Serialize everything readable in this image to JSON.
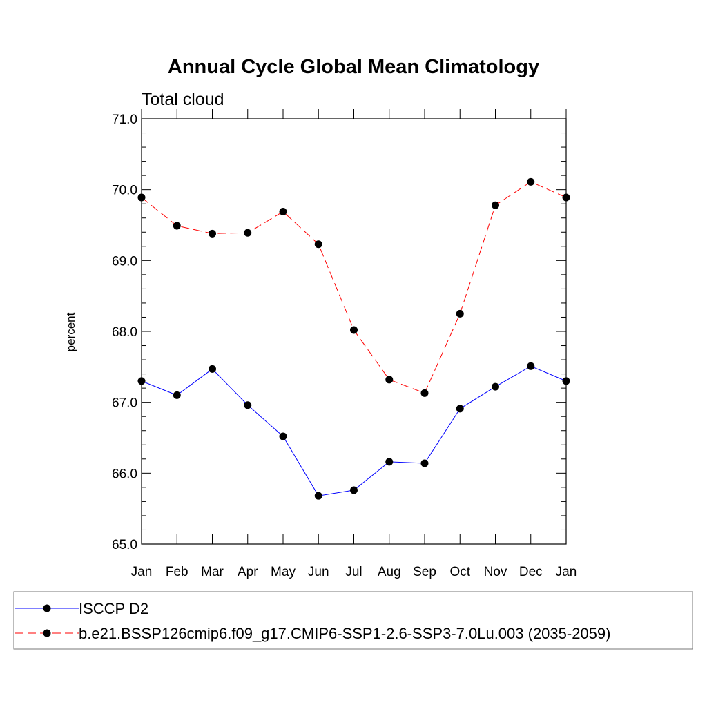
{
  "chart_data": {
    "type": "line",
    "title": "Annual Cycle Global Mean Climatology",
    "subtitle": "Total cloud",
    "xlabel": "",
    "ylabel": "percent",
    "categories": [
      "Jan",
      "Feb",
      "Mar",
      "Apr",
      "May",
      "Jun",
      "Jul",
      "Aug",
      "Sep",
      "Oct",
      "Nov",
      "Dec",
      "Jan"
    ],
    "ylim": [
      65.0,
      71.0
    ],
    "yticks": [
      "65.0",
      "66.0",
      "67.0",
      "68.0",
      "69.0",
      "70.0",
      "71.0"
    ],
    "grid": false,
    "legend_position": "bottom",
    "series": [
      {
        "name": "ISCCP D2",
        "color": "#0000ff",
        "line_style": "solid",
        "values": [
          67.3,
          67.1,
          67.47,
          66.96,
          66.52,
          65.68,
          65.76,
          66.16,
          66.14,
          66.91,
          67.22,
          67.51,
          67.3
        ]
      },
      {
        "name": "b.e21.BSSP126cmip6.f09_g17.CMIP6-SSP1-2.6-SSP3-7.0Lu.003 (2035-2059)",
        "color": "#ff0000",
        "line_style": "dashed",
        "values": [
          69.89,
          69.49,
          69.38,
          69.39,
          69.69,
          69.23,
          68.02,
          67.32,
          67.13,
          68.25,
          69.78,
          70.11,
          69.89
        ]
      }
    ]
  }
}
